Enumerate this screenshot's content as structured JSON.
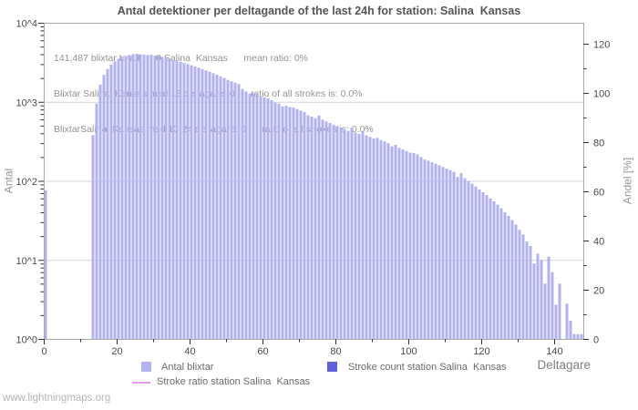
{
  "watermark": "www.lightningmaps.org",
  "chart_data": {
    "type": "bar",
    "title": "Antal detektioner per deltagande of the last 24h for station: Salina  Kansas",
    "annotations": [
      "141,487 blixtar totalt      0 Salina  Kansas      mean ratio: 0%",
      "Blixtar Salina  Kansas med 13 deltagare: 0      ratio of all strokes is: 0.0%",
      "BlixtarSalina  Kansas med 13-24 deltagare: 0      ratio of all strokes is: 0.0%"
    ],
    "xlabel": "Deltagare",
    "ylabel_left": "Antal",
    "ylabel_right": "Andel [%]",
    "x_axis": {
      "range": [
        0,
        148
      ],
      "major_ticks": [
        0,
        20,
        40,
        60,
        80,
        100,
        120,
        140
      ],
      "minor_step": 10
    },
    "y_axis_left": {
      "scale": "log",
      "tick_labels": [
        "10^0",
        "10^1",
        "10^2",
        "10^3",
        "10^4"
      ],
      "decade_min": 0,
      "decade_max": 4
    },
    "y_axis_right": {
      "range": [
        0,
        128.5
      ],
      "major_ticks": [
        0,
        20,
        40,
        60,
        80,
        100,
        120
      ],
      "minor_step": 10
    },
    "grid": "horizontal-decades",
    "legend": [
      {
        "label": "Antal blixtar",
        "swatch": "square",
        "color": "#b2b2f0"
      },
      {
        "label": "Stroke count station Salina  Kansas",
        "swatch": "square",
        "color": "#6060e0"
      },
      {
        "label": "Stroke ratio station Salina  Kansas",
        "swatch": "line",
        "color": "#ec9aec"
      }
    ],
    "colors": {
      "bar": "#b2b2f0",
      "stroke_count_bar": "#6060e0",
      "stroke_ratio_line": "#ec9aec",
      "grid": "#d4d4d4",
      "axis_border": "#a8a8a8",
      "tick": "#333333",
      "tick_label": "#4a4a4a"
    },
    "series": [
      {
        "name": "Antal blixtar",
        "type": "bar",
        "x_start": 0,
        "values": [
          76,
          0,
          0,
          0,
          0,
          0,
          0,
          0,
          0,
          0,
          0,
          0,
          0,
          380,
          950,
          1650,
          2200,
          2600,
          2950,
          3250,
          3500,
          3700,
          3800,
          3900,
          4000,
          4050,
          4000,
          3950,
          3900,
          3950,
          3850,
          3800,
          3700,
          3600,
          3500,
          3400,
          3300,
          3200,
          3100,
          3000,
          2900,
          2800,
          2700,
          2600,
          2500,
          2400,
          2300,
          2200,
          2100,
          2000,
          1900,
          1820,
          1750,
          1680,
          1450,
          1350,
          1270,
          1290,
          1270,
          1160,
          1140,
          1100,
          1050,
          975,
          950,
          875,
          890,
          860,
          845,
          810,
          775,
          740,
          675,
          650,
          620,
          670,
          595,
          565,
          540,
          515,
          495,
          470,
          450,
          430,
          470,
          410,
          392,
          420,
          375,
          360,
          343,
          350,
          328,
          315,
          300,
          273,
          285,
          262,
          250,
          238,
          228,
          225,
          216,
          200,
          186,
          180,
          172,
          165,
          158,
          150,
          143,
          137,
          130,
          112,
          125,
          108,
          100,
          92,
          85,
          78,
          72,
          66,
          60,
          55,
          50,
          45,
          40,
          36,
          32,
          28,
          24,
          21,
          17,
          15,
          9,
          12,
          10,
          5,
          11,
          7,
          2.7,
          5,
          0,
          2.8,
          1.7,
          1.15,
          1.15,
          1.15
        ]
      },
      {
        "name": "Stroke count station Salina  Kansas",
        "type": "bar",
        "values_all_zero": true
      },
      {
        "name": "Stroke ratio station Salina  Kansas",
        "type": "line",
        "values_all_zero": true
      }
    ]
  }
}
